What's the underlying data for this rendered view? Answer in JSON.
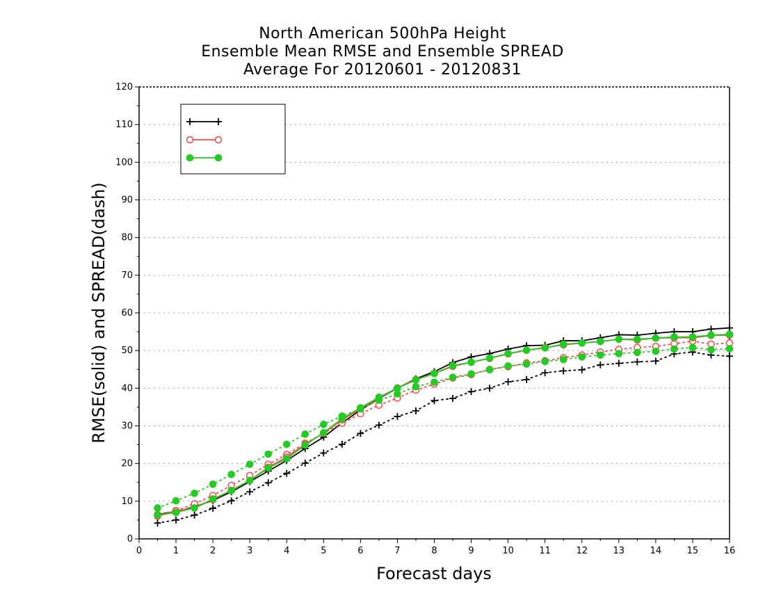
{
  "chart_data": {
    "type": "line",
    "title": [
      "North American 500hPa Height",
      "Ensemble Mean RMSE and Ensemble SPREAD",
      "Average For 20120601 - 20120831"
    ],
    "xlabel": "Forecast days",
    "ylabel": "RMSE(solid) and SPREAD(dash)",
    "xlim": [
      0,
      16
    ],
    "ylim": [
      0,
      120
    ],
    "xticks": [
      0,
      1,
      2,
      3,
      4,
      5,
      6,
      7,
      8,
      9,
      10,
      11,
      12,
      13,
      14,
      15,
      16
    ],
    "yticks": [
      0,
      10,
      20,
      30,
      40,
      50,
      60,
      70,
      80,
      90,
      100,
      110,
      120
    ],
    "grid": true,
    "legend_position": "top-left",
    "x": [
      0.5,
      1,
      1.5,
      2,
      2.5,
      3,
      3.5,
      4,
      4.5,
      5,
      5.5,
      6,
      6.5,
      7,
      7.5,
      8,
      8.5,
      9,
      9.5,
      10,
      10.5,
      11,
      11.5,
      12,
      12.5,
      13,
      13.5,
      14,
      14.5,
      15,
      15.5,
      16
    ],
    "series": [
      {
        "name": "",
        "color": "#000000",
        "marker": "plus",
        "rmse": [
          6.5,
          7.2,
          8.5,
          10.2,
          12.5,
          15.2,
          18.0,
          20.8,
          24.0,
          27.0,
          30.8,
          34.2,
          37.3,
          40.0,
          42.5,
          44.4,
          46.8,
          48.3,
          49.2,
          50.4,
          51.3,
          51.4,
          52.6,
          52.6,
          53.4,
          54.2,
          54.1,
          54.6,
          55.0,
          55.0,
          55.7,
          56.0
        ],
        "spread": [
          4.2,
          5.0,
          6.3,
          8.1,
          10.1,
          12.5,
          14.9,
          17.4,
          20.1,
          22.8,
          25.1,
          28.0,
          30.2,
          32.5,
          34.0,
          36.7,
          37.3,
          39.1,
          40.0,
          41.7,
          42.3,
          44.1,
          44.6,
          44.9,
          46.2,
          46.6,
          47.0,
          47.2,
          49.1,
          49.6,
          48.8,
          48.5
        ]
      },
      {
        "name": "",
        "color": "#ff4444",
        "marker": "open-circle",
        "rmse": [
          6.0,
          7.4,
          8.2,
          10.4,
          12.9,
          15.5,
          19.0,
          21.7,
          25.1,
          28.1,
          31.6,
          34.5,
          37.4,
          40.1,
          42.3,
          43.9,
          45.8,
          46.9,
          47.9,
          49.1,
          50.1,
          50.8,
          51.5,
          52.0,
          52.4,
          53.0,
          52.8,
          53.3,
          53.4,
          53.4,
          54.0,
          54.1
        ],
        "spread": [
          6.5,
          7.5,
          9.3,
          11.5,
          14.2,
          16.8,
          19.8,
          22.4,
          25.4,
          28.0,
          30.7,
          33.2,
          35.5,
          37.4,
          39.5,
          41.1,
          42.7,
          43.6,
          45.0,
          45.7,
          46.7,
          47.3,
          48.1,
          48.8,
          49.6,
          50.3,
          50.8,
          51.1,
          51.8,
          52.5,
          51.7,
          52.0
        ]
      },
      {
        "name": "",
        "color": "#22cc22",
        "marker": "filled-circle",
        "rmse": [
          6.3,
          7.0,
          8.2,
          10.6,
          12.8,
          15.5,
          18.8,
          21.3,
          24.9,
          28.2,
          31.9,
          34.8,
          37.6,
          40.0,
          42.2,
          43.9,
          46.0,
          46.9,
          48.0,
          49.2,
          50.1,
          50.7,
          51.7,
          52.0,
          52.4,
          53.0,
          53.0,
          53.3,
          53.6,
          53.6,
          54.1,
          54.3
        ],
        "spread": [
          8.2,
          10.1,
          12.1,
          14.5,
          17.1,
          19.8,
          22.5,
          25.1,
          27.8,
          30.4,
          32.6,
          34.5,
          36.8,
          38.5,
          40.4,
          41.6,
          42.9,
          43.8,
          44.9,
          45.9,
          46.4,
          47.1,
          47.6,
          48.3,
          48.8,
          49.2,
          49.5,
          49.8,
          50.4,
          50.8,
          50.2,
          50.5
        ]
      }
    ]
  }
}
